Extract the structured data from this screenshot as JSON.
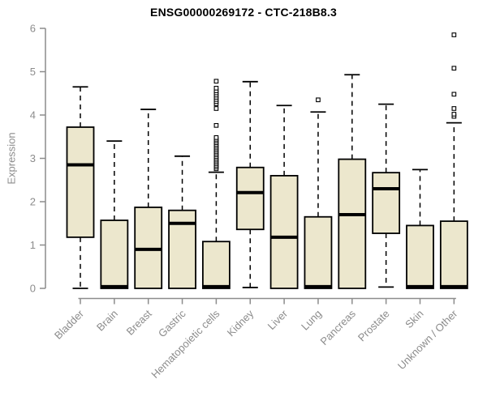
{
  "title": "ENSG00000269172 - CTC-218B8.3",
  "chart_data": {
    "type": "boxplot",
    "title": "ENSG00000269172 - CTC-218B8.3",
    "xlabel": "",
    "ylabel": "Expression",
    "ylim": [
      0,
      6
    ],
    "yticks": [
      0,
      1,
      2,
      3,
      4,
      5,
      6
    ],
    "grid": false,
    "legend": "none",
    "categories": [
      "Bladder",
      "Brain",
      "Breast",
      "Gastric",
      "Hematopoietic cells",
      "Kidney",
      "Liver",
      "Lung",
      "Pancreas",
      "Prostate",
      "Skin",
      "Unknown / Other"
    ],
    "series": [
      {
        "category": "Bladder",
        "whisker_low": 0,
        "q1": 1.18,
        "median": 2.85,
        "q3": 3.72,
        "whisker_high": 4.65,
        "outliers": []
      },
      {
        "category": "Brain",
        "whisker_low": 0,
        "q1": 0,
        "median": 0.04,
        "q3": 1.57,
        "whisker_high": 3.4,
        "outliers": []
      },
      {
        "category": "Breast",
        "whisker_low": 0,
        "q1": 0,
        "median": 0.9,
        "q3": 1.87,
        "whisker_high": 4.13,
        "outliers": []
      },
      {
        "category": "Gastric",
        "whisker_low": 0,
        "q1": 0,
        "median": 1.5,
        "q3": 1.8,
        "whisker_high": 3.05,
        "outliers": []
      },
      {
        "category": "Hematopoietic cells",
        "whisker_low": 0,
        "q1": 0,
        "median": 0.04,
        "q3": 1.08,
        "whisker_high": 2.68,
        "outliers": [
          2.76,
          2.8,
          2.84,
          2.88,
          2.92,
          2.96,
          3.0,
          3.04,
          3.08,
          3.12,
          3.16,
          3.2,
          3.24,
          3.28,
          3.32,
          3.36,
          3.4,
          3.44,
          3.48,
          3.76,
          4.15,
          4.26,
          4.31,
          4.36,
          4.41,
          4.46,
          4.51,
          4.56,
          4.62,
          4.78
        ]
      },
      {
        "category": "Kidney",
        "whisker_low": 0.02,
        "q1": 1.36,
        "median": 2.21,
        "q3": 2.79,
        "whisker_high": 4.77,
        "outliers": []
      },
      {
        "category": "Liver",
        "whisker_low": 0,
        "q1": 0,
        "median": 1.18,
        "q3": 2.6,
        "whisker_high": 4.22,
        "outliers": []
      },
      {
        "category": "Lung",
        "whisker_low": 0,
        "q1": 0,
        "median": 0.04,
        "q3": 1.65,
        "whisker_high": 4.07,
        "outliers": [
          4.35
        ]
      },
      {
        "category": "Pancreas",
        "whisker_low": 0,
        "q1": 0,
        "median": 1.7,
        "q3": 2.98,
        "whisker_high": 4.93,
        "outliers": []
      },
      {
        "category": "Prostate",
        "whisker_low": 0.03,
        "q1": 1.27,
        "median": 2.3,
        "q3": 2.67,
        "whisker_high": 4.25,
        "outliers": []
      },
      {
        "category": "Skin",
        "whisker_low": 0,
        "q1": 0,
        "median": 0.04,
        "q3": 1.45,
        "whisker_high": 2.74,
        "outliers": []
      },
      {
        "category": "Unknown / Other",
        "whisker_low": 0,
        "q1": 0,
        "median": 0.04,
        "q3": 1.55,
        "whisker_high": 3.82,
        "outliers": [
          3.97,
          4.02,
          4.15,
          4.48,
          5.08,
          5.85
        ]
      }
    ],
    "colors": {
      "background": "#FFFFFF",
      "box_fill": "#ECE7CD",
      "box_border": "#000000",
      "median": "#000000",
      "whisker": "#000000",
      "outlier_fill": "#FFFFFF",
      "outlier_border": "#000000",
      "axis": "#8c8c8c",
      "tick_label": "#8c8c8c",
      "title": "#000000"
    }
  }
}
